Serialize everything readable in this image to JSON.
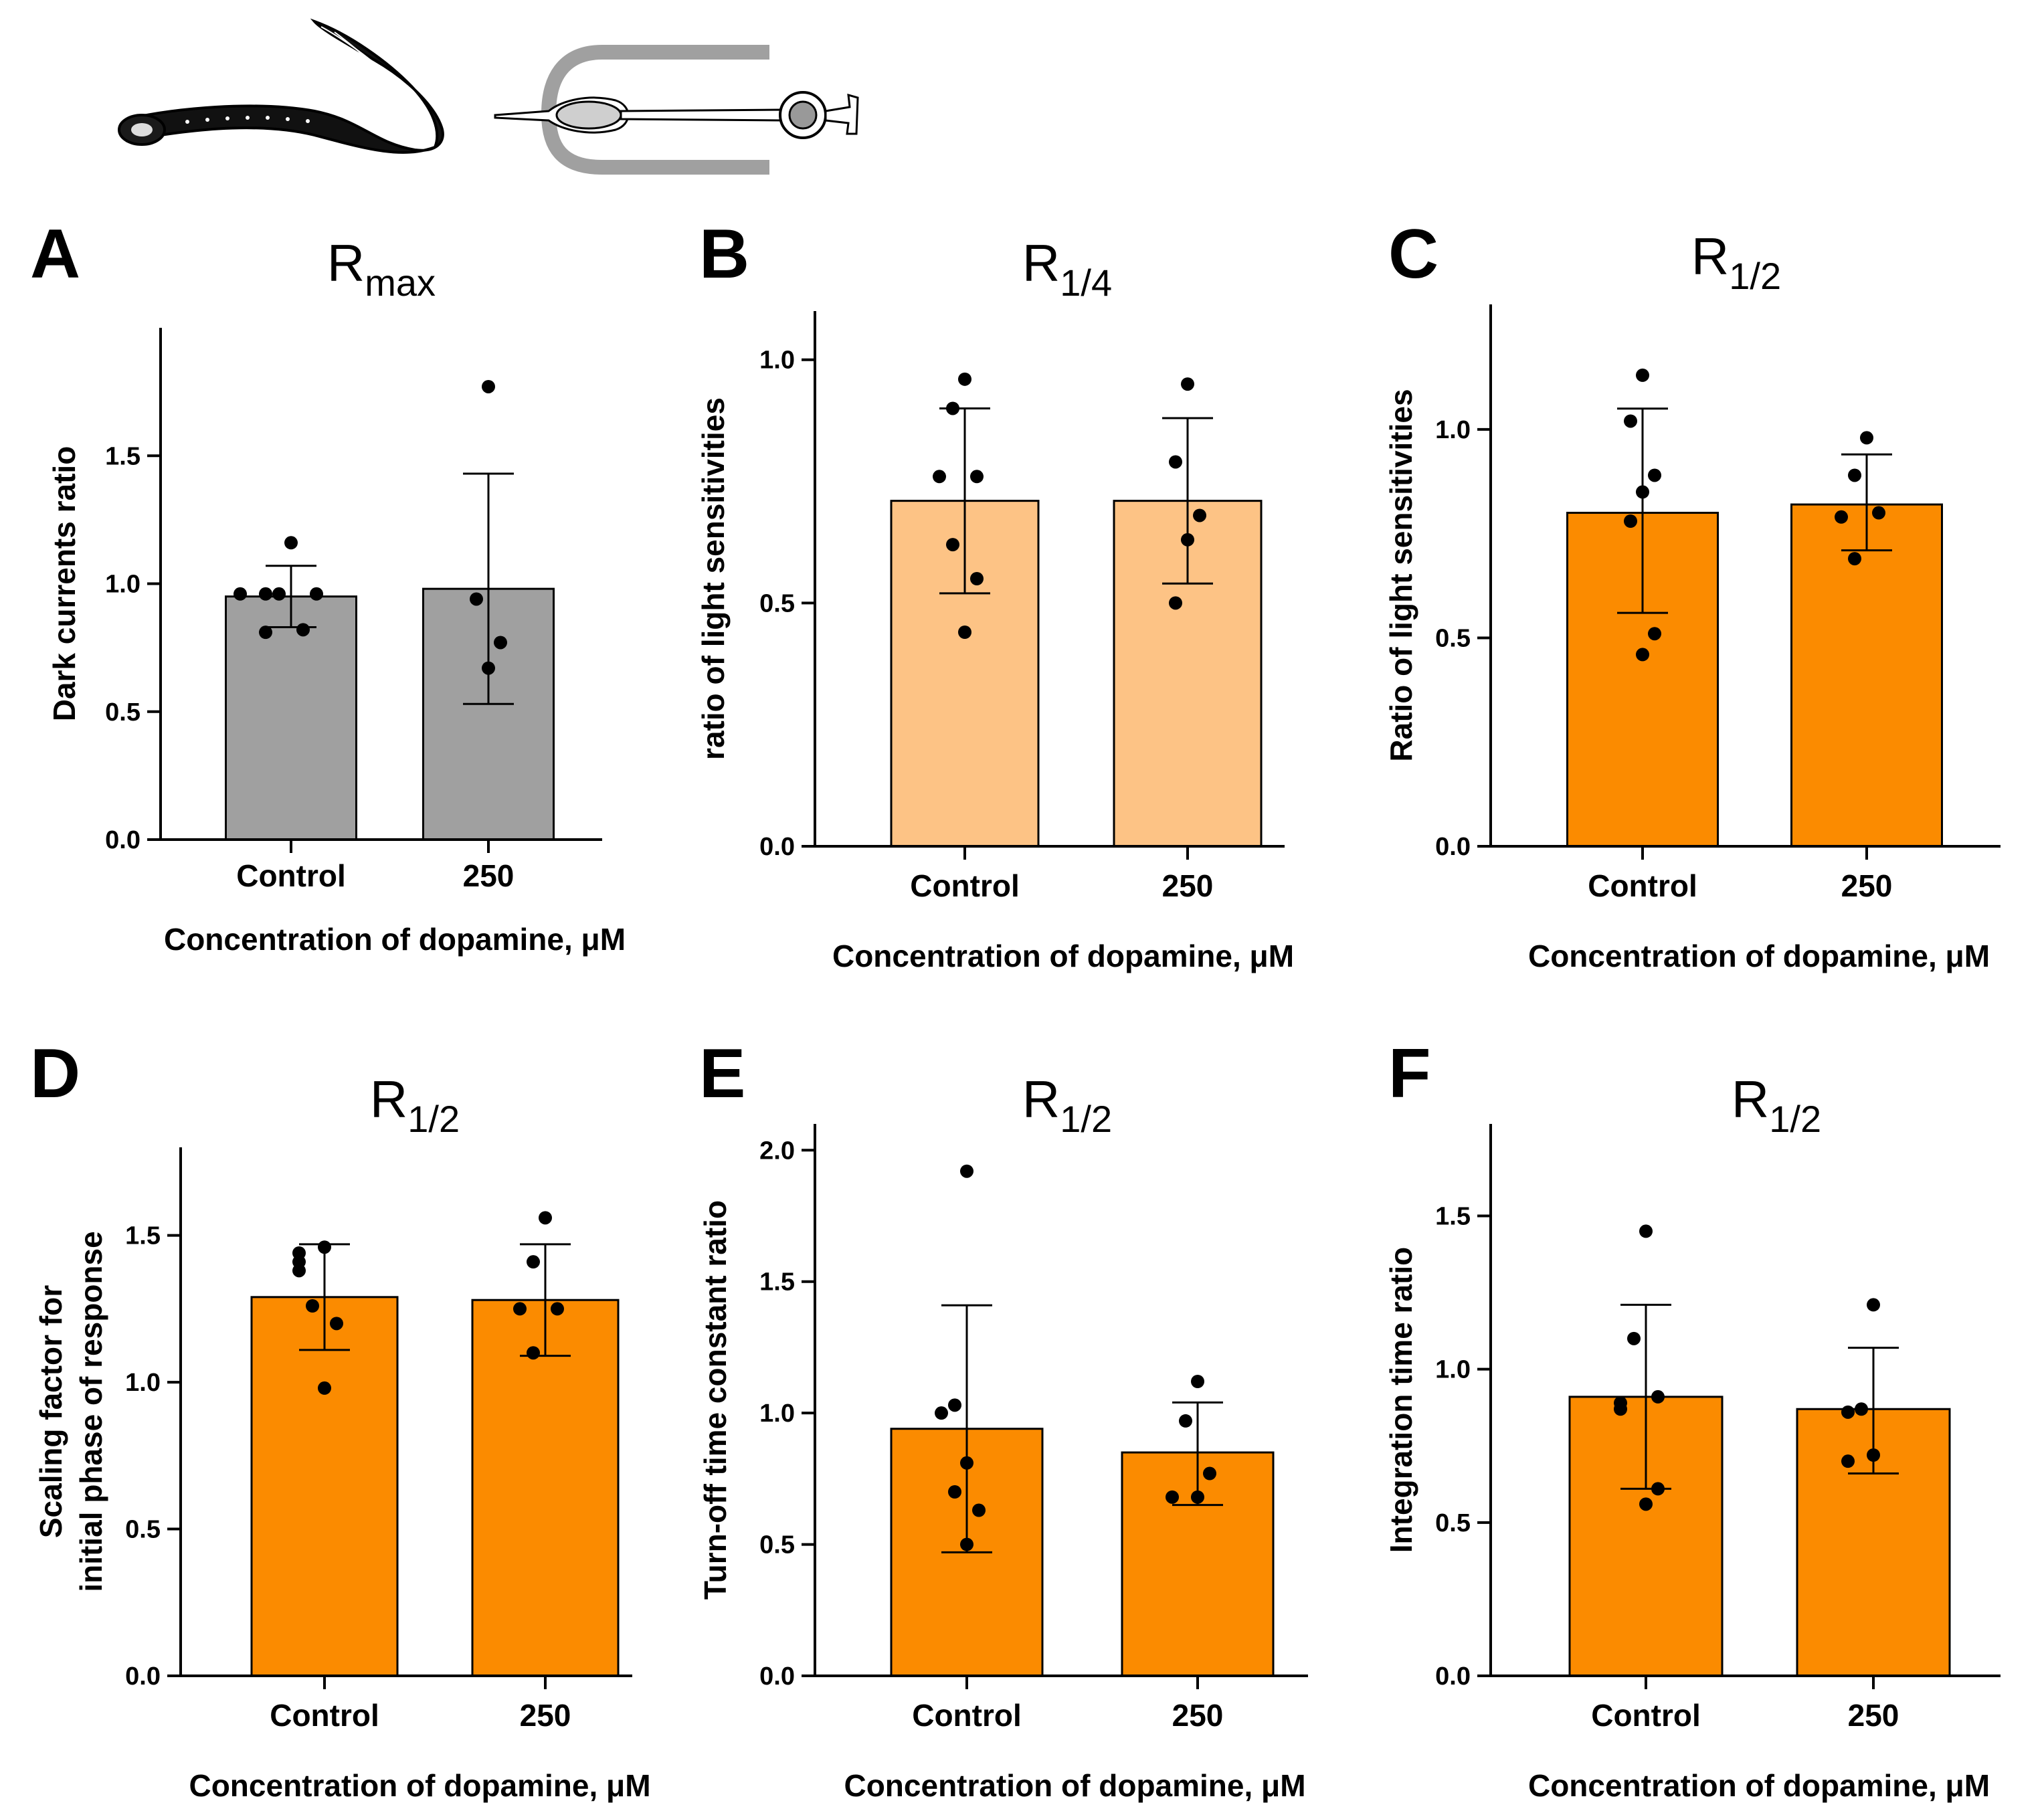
{
  "colors": {
    "grey": "#a0a0a0",
    "light_orange": "#fdc385",
    "orange": "#fb8b00",
    "ink": "#000000"
  },
  "header": {
    "illustrations": [
      "lamprey-drawing",
      "photoreceptor-cell-drawing"
    ]
  },
  "chart_data": [
    {
      "id": "A",
      "type": "bar",
      "letter": "A",
      "title_main": "R",
      "title_sub": "max",
      "ylabel": "Dark currents ratio",
      "xlabel": "Concentration of dopamine, μM",
      "ylim": [
        0,
        2.0
      ],
      "yticks": [
        0.0,
        0.5,
        1.0,
        1.5
      ],
      "ytick_labels": [
        "0.0",
        "0.5",
        "1.0",
        "1.5"
      ],
      "categories": [
        "Control",
        "250"
      ],
      "bar_color": "grey",
      "series": [
        {
          "values": [
            0.95,
            0.98
          ],
          "err_low": [
            0.83,
            0.53
          ],
          "err_high": [
            1.07,
            1.43
          ]
        }
      ],
      "points": [
        [
          1.16,
          0.96,
          0.96,
          0.96,
          0.96,
          0.82,
          0.81
        ],
        [
          1.77,
          0.94,
          0.77,
          0.67
        ]
      ]
    },
    {
      "id": "B",
      "type": "bar",
      "letter": "B",
      "title_main": "R",
      "title_sub": "1/4",
      "ylabel": "ratio of light sensitivities",
      "xlabel": "Concentration of dopamine, μM",
      "ylim": [
        0,
        1.1
      ],
      "yticks": [
        0.0,
        0.5,
        1.0
      ],
      "ytick_labels": [
        "0.0",
        "0.5",
        "1.0"
      ],
      "categories": [
        "Control",
        "250"
      ],
      "bar_color": "light_orange",
      "series": [
        {
          "values": [
            0.71,
            0.71
          ],
          "err_low": [
            0.52,
            0.54
          ],
          "err_high": [
            0.9,
            0.88
          ]
        }
      ],
      "points": [
        [
          0.96,
          0.9,
          0.76,
          0.76,
          0.62,
          0.55,
          0.44
        ],
        [
          0.95,
          0.79,
          0.68,
          0.63,
          0.5
        ]
      ]
    },
    {
      "id": "C",
      "type": "bar",
      "letter": "C",
      "title_main": "R",
      "title_sub": "1/2",
      "ylabel": "Ratio of light sensitivities",
      "xlabel": "Concentration of dopamine, μM",
      "ylim": [
        0,
        1.3
      ],
      "yticks": [
        0.0,
        0.5,
        1.0
      ],
      "ytick_labels": [
        "0.0",
        "0.5",
        "1.0"
      ],
      "categories": [
        "Control",
        "250"
      ],
      "bar_color": "orange",
      "series": [
        {
          "values": [
            0.8,
            0.82
          ],
          "err_low": [
            0.56,
            0.71
          ],
          "err_high": [
            1.05,
            0.94
          ]
        }
      ],
      "points": [
        [
          1.13,
          1.02,
          0.89,
          0.85,
          0.78,
          0.51,
          0.46
        ],
        [
          0.98,
          0.89,
          0.8,
          0.79,
          0.69
        ]
      ]
    },
    {
      "id": "D",
      "type": "bar",
      "letter": "D",
      "title_main": "R",
      "title_sub": "1/2",
      "ylabel": "Scaling factor for\ninitial phase of response",
      "xlabel": "Concentration of dopamine, μM",
      "ylim": [
        0,
        1.8
      ],
      "yticks": [
        0.0,
        0.5,
        1.0,
        1.5
      ],
      "ytick_labels": [
        "0.0",
        "0.5",
        "1.0",
        "1.5"
      ],
      "categories": [
        "Control",
        "250"
      ],
      "bar_color": "orange",
      "series": [
        {
          "values": [
            1.29,
            1.28
          ],
          "err_low": [
            1.11,
            1.09
          ],
          "err_high": [
            1.47,
            1.47
          ]
        }
      ],
      "points": [
        [
          1.46,
          1.44,
          1.41,
          1.38,
          1.26,
          1.2,
          0.98
        ],
        [
          1.56,
          1.41,
          1.25,
          1.25,
          1.1
        ]
      ]
    },
    {
      "id": "E",
      "type": "bar",
      "letter": "E",
      "title_main": "R",
      "title_sub": "1/2",
      "ylabel": "Turn-off time constant ratio",
      "xlabel": "Concentration of dopamine, μM",
      "ylim": [
        0,
        2.1
      ],
      "yticks": [
        0.0,
        0.5,
        1.0,
        1.5,
        2.0
      ],
      "ytick_labels": [
        "0.0",
        "0.5",
        "1.0",
        "1.5",
        "2.0"
      ],
      "categories": [
        "Control",
        "250"
      ],
      "bar_color": "orange",
      "series": [
        {
          "values": [
            0.94,
            0.85
          ],
          "err_low": [
            0.47,
            0.65
          ],
          "err_high": [
            1.41,
            1.04
          ]
        }
      ],
      "points": [
        [
          1.92,
          1.03,
          1.0,
          0.81,
          0.7,
          0.63,
          0.5
        ],
        [
          1.12,
          0.97,
          0.77,
          0.68,
          0.68
        ]
      ]
    },
    {
      "id": "F",
      "type": "bar",
      "letter": "F",
      "title_main": "R",
      "title_sub": "1/2",
      "ylabel": "Integration time ratio",
      "xlabel": "Concentration of dopamine, μM",
      "ylim": [
        0,
        1.8
      ],
      "yticks": [
        0.0,
        0.5,
        1.0,
        1.5
      ],
      "ytick_labels": [
        "0.0",
        "0.5",
        "1.0",
        "1.5"
      ],
      "categories": [
        "Control",
        "250"
      ],
      "bar_color": "orange",
      "series": [
        {
          "values": [
            0.91,
            0.87
          ],
          "err_low": [
            0.61,
            0.66
          ],
          "err_high": [
            1.21,
            1.07
          ]
        }
      ],
      "points": [
        [
          1.45,
          1.1,
          0.91,
          0.89,
          0.87,
          0.61,
          0.56
        ],
        [
          1.21,
          0.87,
          0.86,
          0.72,
          0.7
        ]
      ]
    }
  ]
}
